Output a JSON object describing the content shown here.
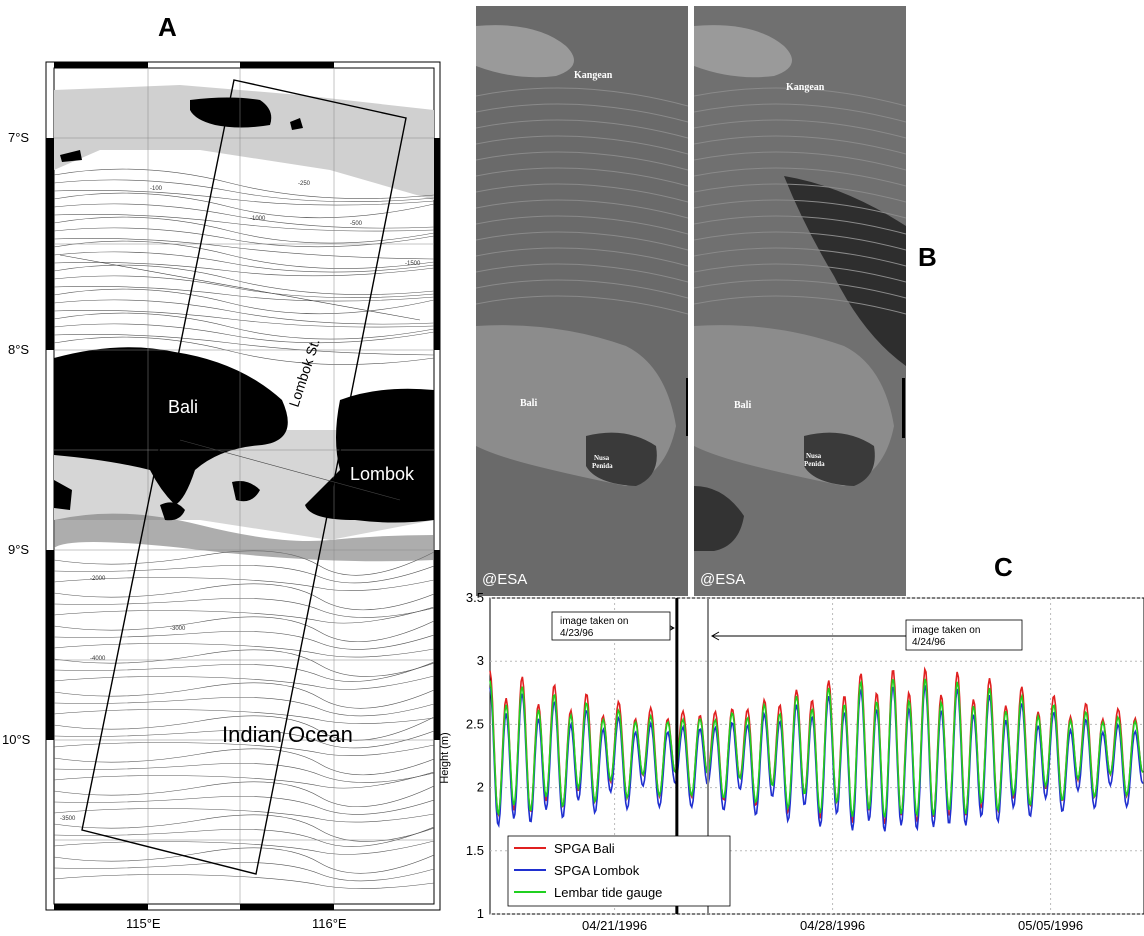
{
  "panels": {
    "a": "A",
    "b": "B",
    "c": "C"
  },
  "map": {
    "lat_labels": [
      "7°S",
      "8°S",
      "9°S",
      "10°S"
    ],
    "lon_labels": [
      "115°E",
      "116°E"
    ],
    "place_labels": {
      "bali": "Bali",
      "lombok": "Lombok",
      "strait": "Lombok St.",
      "ocean": "Indian Ocean"
    },
    "contour_labels": [
      "-100",
      "-250",
      "-1000",
      "-500",
      "-1500",
      "-2000",
      "-3000",
      "-4000",
      "-3500"
    ]
  },
  "sar": {
    "left": {
      "kangean": "Kangean",
      "bali": "Bali",
      "nusa": "Nusa",
      "penida": "Penida",
      "credit": "@ESA"
    },
    "right": {
      "kangean": "Kangean",
      "bali": "Bali",
      "nusa": "Nusa",
      "penida": "Penida",
      "credit": "@ESA"
    }
  },
  "chart_data": {
    "type": "line",
    "ylabel": "Height (m)",
    "ylim": [
      1,
      3.5
    ],
    "yticks": [
      1,
      1.5,
      2,
      2.5,
      3,
      3.5
    ],
    "xlim": [
      "1996-04-17",
      "1996-05-08"
    ],
    "xticks": [
      {
        "date": "1996-04-21",
        "label": "04/21/1996"
      },
      {
        "date": "1996-04-28",
        "label": "04/28/1996"
      },
      {
        "date": "1996-05-05",
        "label": "05/05/1996"
      }
    ],
    "grid": true,
    "legend_position": "bottom-left",
    "annotations": [
      {
        "text_line1": "image taken on",
        "text_line2": "4/23/96",
        "date": "1996-04-23",
        "line_color": "#000000"
      },
      {
        "text_line1": "image taken on",
        "text_line2": "4/24/96",
        "date": "1996-04-24",
        "line_color": "#888888"
      }
    ],
    "series_meta": {
      "period_days": 0.5175,
      "phase_date": "1996-04-17",
      "start_date": "1996-04-17",
      "end_date": "1996-05-08",
      "step_days": 0.04
    },
    "series": [
      {
        "name": "SPGA Bali",
        "color": "#e02020",
        "mean": 2.3,
        "amp": 0.55
      },
      {
        "name": "SPGA Lombok",
        "color": "#2030d0",
        "mean": 2.2,
        "amp": 0.52
      },
      {
        "name": "Lembar tide gauge",
        "color": "#20d020",
        "mean": 2.28,
        "amp": 0.5
      }
    ]
  }
}
